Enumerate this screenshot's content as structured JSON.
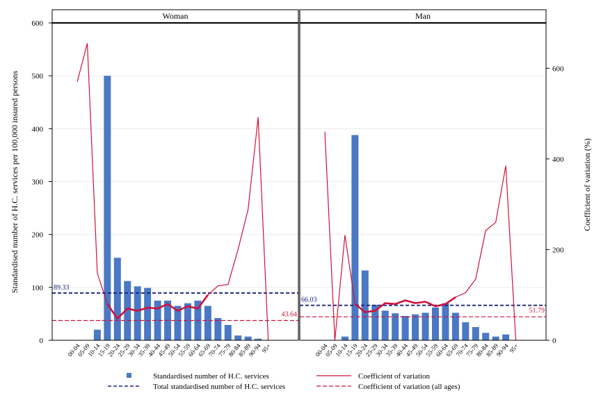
{
  "chart_data": {
    "type": "bar",
    "panels": [
      "Woman",
      "Man"
    ],
    "categories": [
      "00-04",
      "05-09",
      "10-14",
      "15-19",
      "20-24",
      "25-29",
      "30-34",
      "35-39",
      "40-44",
      "45-49",
      "50-54",
      "55-59",
      "60-64",
      "65-69",
      "70-74",
      "75-79",
      "80-84",
      "85-89",
      "90-94",
      "95+"
    ],
    "left_axis": {
      "label": "Standardised number of H.C. services per 100,000 insured persons",
      "ylim": [
        0,
        600
      ],
      "ticks": [
        "0",
        "100",
        "200",
        "300",
        "400",
        "500",
        "600"
      ]
    },
    "right_axis": {
      "label": "Coefficient of variation (%)",
      "ylim": [
        0,
        700
      ],
      "ticks": [
        "0",
        "200",
        "400",
        "600"
      ]
    },
    "series": [
      {
        "name": "Standardised number of H.C. services",
        "panel": "Woman",
        "kind": "bar",
        "values": [
          0,
          0,
          20,
          500,
          156,
          112,
          102,
          99,
          75,
          75,
          65,
          70,
          75,
          65,
          42,
          29,
          9,
          7,
          3,
          0
        ]
      },
      {
        "name": "Standardised number of H.C. services",
        "panel": "Man",
        "kind": "bar",
        "values": [
          0,
          0,
          7,
          388,
          132,
          67,
          56,
          51,
          46,
          49,
          52,
          62,
          70,
          52,
          34,
          25,
          14,
          7,
          11,
          0
        ]
      },
      {
        "name": "Coefficient of variation",
        "panel": "Woman",
        "kind": "line",
        "values": [
          570,
          655,
          148,
          80,
          48,
          70,
          65,
          72,
          70,
          80,
          65,
          75,
          70,
          100,
          120,
          123,
          200,
          288,
          492,
          0
        ]
      },
      {
        "name": "Coefficient of variation",
        "panel": "Man",
        "kind": "line",
        "values": [
          460,
          0,
          232,
          80,
          62,
          65,
          82,
          80,
          88,
          82,
          85,
          75,
          80,
          95,
          105,
          135,
          242,
          260,
          385,
          0
        ]
      }
    ],
    "reference_lines": [
      {
        "name": "Total standardised number of H.C. services",
        "panel": "Woman",
        "value": 89.33,
        "label": "89.33",
        "axis": "left"
      },
      {
        "name": "Total standardised number of H.C. services",
        "panel": "Man",
        "value": 66.03,
        "label": "66.03",
        "axis": "left"
      },
      {
        "name": "Coefficient of variation (all ages)",
        "panel": "Woman",
        "value": 43.64,
        "label": "43.64",
        "axis": "right"
      },
      {
        "name": "Coefficient of variation (all ages)",
        "panel": "Man",
        "value": 51.79,
        "label": "51.79",
        "axis": "right"
      }
    ],
    "legend": {
      "placement": "bottom",
      "items": [
        {
          "label": "Standardised number of H.C. services",
          "kind": "bar-marker"
        },
        {
          "label": "Coefficient of variation",
          "kind": "solid-line"
        },
        {
          "label": "Total standardised number of H.C. services",
          "kind": "dashed-navy"
        },
        {
          "label": "Coefficient of variation (all ages)",
          "kind": "dashed-red"
        }
      ]
    },
    "colors": {
      "bar": "#4a78c4",
      "cv_line": "#d0103a",
      "total_line": "#1a237e",
      "cv_all_line": "#d0103a",
      "frame": "#000000",
      "grid": "#ececec"
    }
  }
}
